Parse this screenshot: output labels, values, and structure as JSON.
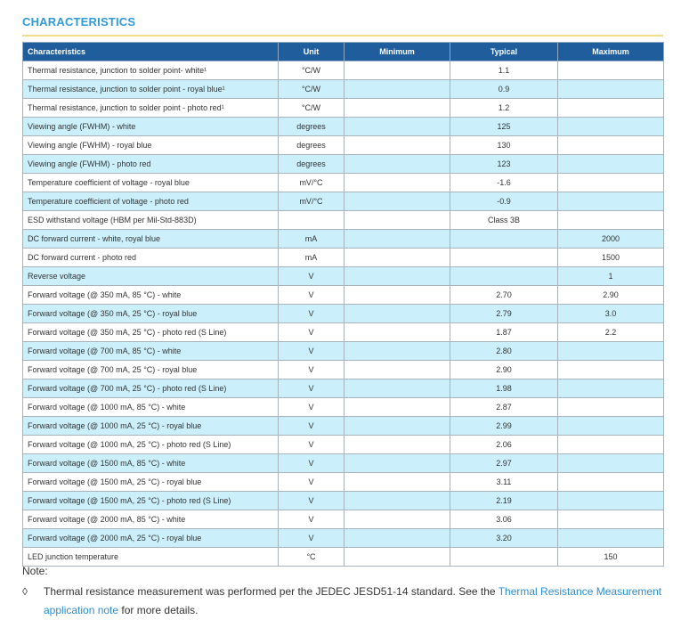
{
  "header": {
    "title": "CHARACTERISTICS"
  },
  "table": {
    "columns": [
      "Characteristics",
      "Unit",
      "Minimum",
      "Typical",
      "Maximum"
    ],
    "rows": [
      [
        "Thermal resistance, junction to solder point- white¹",
        "°C/W",
        null,
        "1.1",
        null
      ],
      [
        "Thermal resistance, junction to solder point - royal blue¹",
        "°C/W",
        null,
        "0.9",
        null
      ],
      [
        "Thermal resistance, junction to solder point - photo red¹",
        "°C/W",
        null,
        "1.2",
        null
      ],
      [
        "Viewing angle (FWHM) - white",
        "degrees",
        null,
        "125",
        null
      ],
      [
        "Viewing angle (FWHM) - royal blue",
        "degrees",
        null,
        "130",
        null
      ],
      [
        "Viewing angle (FWHM) - photo red",
        "degrees",
        null,
        "123",
        null
      ],
      [
        "Temperature coefficient of voltage - royal blue",
        "mV/°C",
        null,
        "-1.6",
        null
      ],
      [
        "Temperature coefficient of voltage - photo red",
        "mV/°C",
        null,
        "-0.9",
        null
      ],
      [
        "ESD withstand voltage (HBM per Mil-Std-883D)",
        null,
        null,
        "Class 3B",
        null
      ],
      [
        "DC forward current - white, royal blue",
        "mA",
        null,
        null,
        "2000"
      ],
      [
        "DC forward current - photo red",
        "mA",
        null,
        null,
        "1500"
      ],
      [
        "Reverse voltage",
        "V",
        null,
        null,
        "1"
      ],
      [
        "Forward voltage (@ 350 mA, 85 °C) - white",
        "V",
        null,
        "2.70",
        "2.90"
      ],
      [
        "Forward voltage (@ 350 mA, 25 °C) - royal blue",
        "V",
        null,
        "2.79",
        "3.0"
      ],
      [
        "Forward voltage (@ 350 mA, 25 °C) - photo red (S Line)",
        "V",
        null,
        "1.87",
        "2.2"
      ],
      [
        "Forward voltage (@ 700 mA, 85 °C) - white",
        "V",
        null,
        "2.80",
        null
      ],
      [
        "Forward voltage (@ 700 mA, 25 °C) - royal blue",
        "V",
        null,
        "2.90",
        null
      ],
      [
        "Forward voltage (@ 700 mA, 25 °C) - photo red (S Line)",
        "V",
        null,
        "1.98",
        null
      ],
      [
        "Forward voltage (@ 1000 mA, 85 °C) - white",
        "V",
        null,
        "2.87",
        null
      ],
      [
        "Forward voltage (@ 1000 mA, 25 °C) - royal blue",
        "V",
        null,
        "2.99",
        null
      ],
      [
        "Forward voltage (@ 1000 mA, 25 °C) - photo red (S Line)",
        "V",
        null,
        "2.06",
        null
      ],
      [
        "Forward voltage (@ 1500 mA, 85 °C) - white",
        "V",
        null,
        "2.97",
        null
      ],
      [
        "Forward voltage (@ 1500 mA, 25 °C) - royal blue",
        "V",
        null,
        "3.11",
        null
      ],
      [
        "Forward voltage (@ 1500 mA, 25 °C) - photo red (S Line)",
        "V",
        null,
        "2.19",
        null
      ],
      [
        "Forward voltage (@ 2000 mA, 85 °C) - white",
        "V",
        null,
        "3.06",
        null
      ],
      [
        "Forward voltage (@ 2000 mA, 25 °C) - royal blue",
        "V",
        null,
        "3.20",
        null
      ],
      [
        "LED junction temperature",
        "°C",
        null,
        null,
        "150"
      ]
    ]
  },
  "notes": {
    "heading": "Note:",
    "marker": "◊",
    "text": "Thermal resistance measurement was performed per the JEDEC JESD51-14 standard. See the",
    "link": "Thermal Resistance Measurement application note",
    "tail": "for more details."
  }
}
